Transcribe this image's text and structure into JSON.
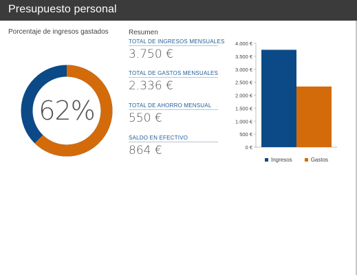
{
  "header": {
    "title": "Presupuesto personal"
  },
  "donut": {
    "label": "Porcentaje de ingresos gastados",
    "percent_text": "62%",
    "fraction": 0.623,
    "colors": {
      "spent": "#d46b0a",
      "remaining": "#0b4a86"
    }
  },
  "summary": {
    "heading": "Resumen",
    "items": [
      {
        "label": "TOTAL DE INGRESOS MENSUALES",
        "value": "3.750 €"
      },
      {
        "label": "TOTAL DE GASTOS MENSUALES",
        "value": "2.336 €"
      },
      {
        "label": "TOTAL DE AHORRO MENSUAL",
        "value": "550 €"
      },
      {
        "label": "SALDO EN EFECTIVO",
        "value": "864 €"
      }
    ]
  },
  "chart_data": {
    "type": "bar",
    "categories": [
      "Ingresos",
      "Gastos"
    ],
    "values": [
      3750,
      2336
    ],
    "colors": [
      "#0b4a86",
      "#d46b0a"
    ],
    "ylim": [
      0,
      4000
    ],
    "yticks": [
      0,
      500,
      1000,
      1500,
      2000,
      2500,
      3000,
      3500,
      4000
    ],
    "ytick_labels": [
      "0 €",
      "500 €",
      "1.000 €",
      "1.500 €",
      "2.000 €",
      "2.500 €",
      "3.000 €",
      "3.500 €",
      "4.000 €"
    ],
    "legend": [
      "Ingresos",
      "Gastos"
    ],
    "legend_position": "bottom",
    "grid": false
  }
}
